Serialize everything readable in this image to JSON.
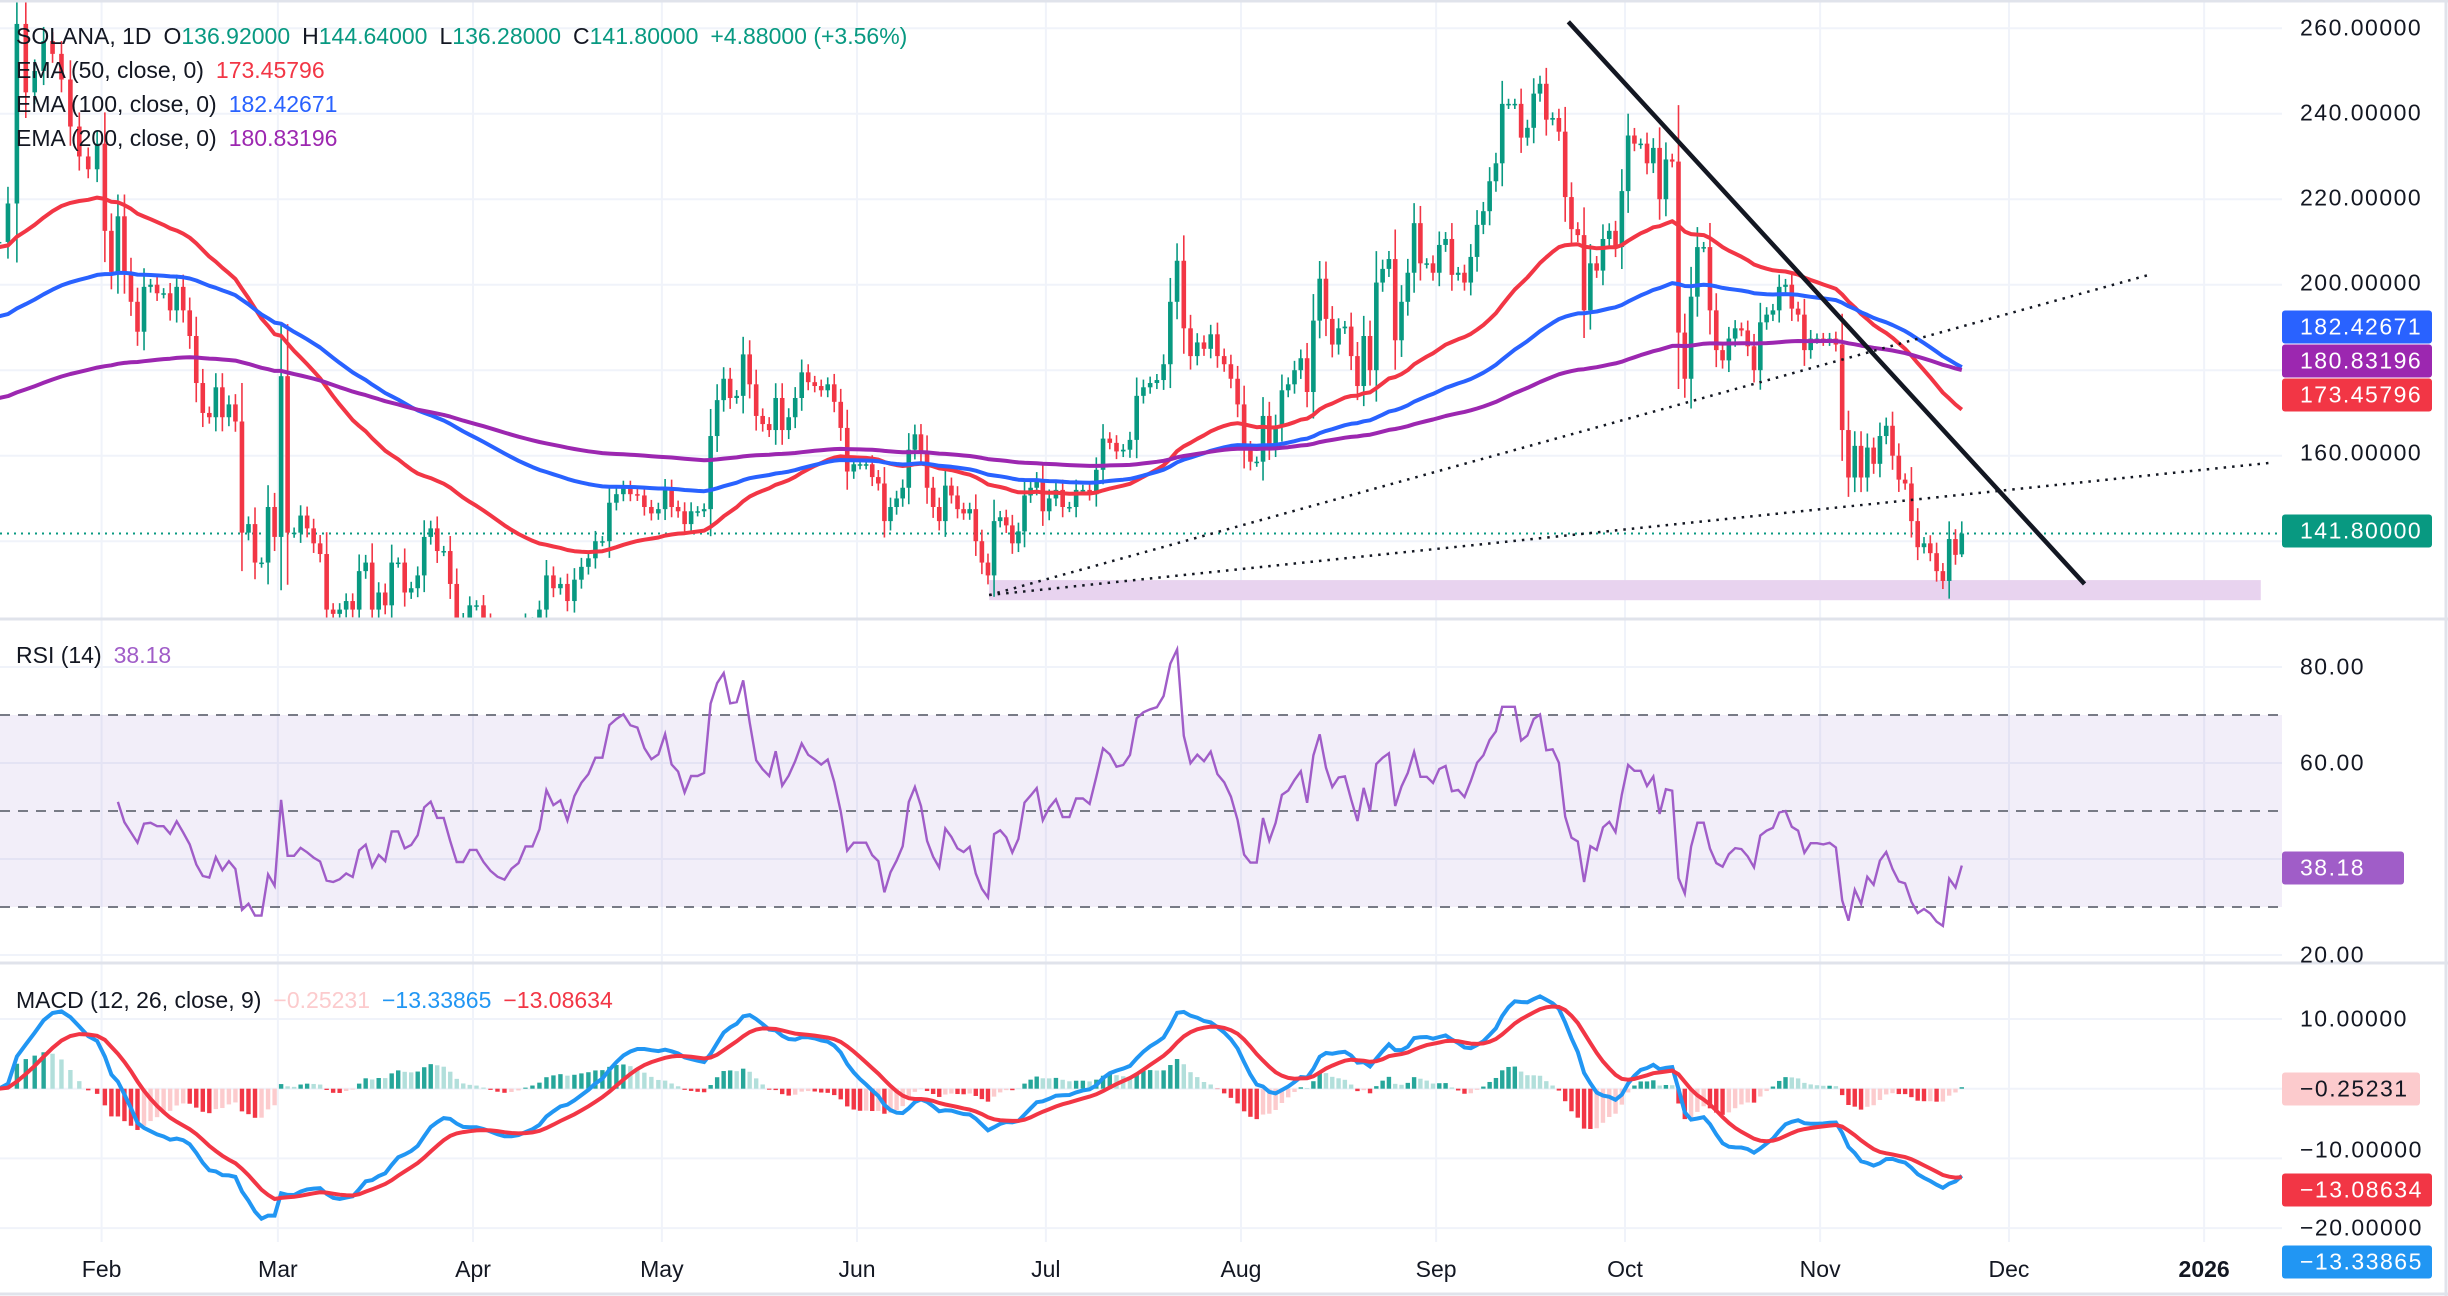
{
  "header": {
    "symbol": "SOLANA, 1D",
    "o_label": "O",
    "o": "136.92000",
    "h_label": "H",
    "h": "144.64000",
    "l_label": "L",
    "l": "136.28000",
    "c_label": "C",
    "c": "141.80000",
    "change": "+4.88000 (+3.56%)"
  },
  "indicators": [
    {
      "label": "EMA (50, close, 0)",
      "value": "173.45796",
      "color": "#f23645"
    },
    {
      "label": "EMA (100, close, 0)",
      "value": "182.42671",
      "color": "#2962ff"
    },
    {
      "label": "EMA (200, close, 0)",
      "value": "180.83196",
      "color": "#9c27b0"
    }
  ],
  "price_axis": {
    "ticks": [
      "260.00000",
      "240.00000",
      "220.00000",
      "200.00000",
      "160.00000"
    ],
    "last_price": "141.80000",
    "last_price_color": "#089981"
  },
  "rsi": {
    "label": "RSI (14)",
    "value": "38.18",
    "color": "#a05dc8",
    "ticks": [
      "80.00",
      "60.00",
      "20.00"
    ]
  },
  "macd": {
    "label": "MACD (12, 26, close, 9)",
    "histogram": "−0.25231",
    "macd": "−13.33865",
    "signal": "−13.08634",
    "macd_color": "#2196f3",
    "signal_color": "#f23645",
    "histogram_color": "#fccbcd",
    "ticks": [
      "10.00000",
      "−10.00000",
      "−20.00000"
    ]
  },
  "x_axis": {
    "labels": [
      {
        "text": "Feb",
        "date": "2025-02-01"
      },
      {
        "text": "Mar",
        "date": "2025-03-01"
      },
      {
        "text": "Apr",
        "date": "2025-04-01"
      },
      {
        "text": "May",
        "date": "2025-05-01"
      },
      {
        "text": "Jun",
        "date": "2025-06-01"
      },
      {
        "text": "Jul",
        "date": "2025-07-01"
      },
      {
        "text": "Aug",
        "date": "2025-08-01"
      },
      {
        "text": "Sep",
        "date": "2025-09-01"
      },
      {
        "text": "Oct",
        "date": "2025-10-01"
      },
      {
        "text": "Nov",
        "date": "2025-11-01"
      },
      {
        "text": "Dec",
        "date": "2025-12-01"
      },
      {
        "text": "2026",
        "date": "2026-01-01",
        "bold": true
      }
    ]
  },
  "chart_data": {
    "type": "candlestick",
    "symbol": "SOLANA",
    "interval": "1D",
    "up_color": "#089981",
    "down_color": "#f23645",
    "ylim": [
      121.8,
      266.6
    ],
    "rsi_ylim": [
      17,
      90
    ],
    "rsi_bands": [
      70,
      50,
      30
    ],
    "macd_ylim": [
      -24,
      14
    ],
    "grid": true,
    "closes_by_month": {
      "2025-01": [
        210,
        219,
        261,
        245,
        250,
        257,
        254,
        248,
        237,
        230,
        227,
        233
      ],
      "2025-02": [
        212.6,
        203,
        216,
        203,
        196,
        189,
        199.5,
        200,
        198,
        198,
        194,
        199.5,
        194,
        188,
        177,
        170,
        169,
        176,
        169,
        172,
        168,
        142,
        144,
        135,
        135,
        148,
        141
      ],
      "2025-03": [
        178.6,
        142,
        142,
        146,
        143,
        139.5,
        137,
        124,
        123,
        124,
        126,
        124,
        133,
        135,
        124,
        128,
        125,
        135,
        135,
        128,
        129,
        132,
        141,
        143,
        137.7,
        137.7,
        130,
        122,
        122,
        125
      ],
      "2025-04": [
        125,
        121,
        118,
        116,
        115,
        117,
        118,
        121,
        121,
        124,
        132,
        129,
        130,
        126,
        131,
        134,
        136,
        140,
        140,
        149,
        151,
        152.5,
        151,
        150.7,
        148,
        146.5,
        147.5
      ],
      "2025-05": [
        152,
        148,
        147,
        144,
        147,
        147,
        147.5,
        164.6,
        173,
        178,
        173.5,
        174,
        183.7,
        176.7,
        169.3,
        167.4,
        166,
        173.5,
        166,
        169,
        173.5,
        179.5,
        177.2,
        176.3,
        175.3,
        176.7,
        172.6,
        166.5,
        156.3,
        158
      ],
      "2025-06": [
        158,
        158,
        155,
        153.5,
        144.7,
        148,
        150,
        152.5,
        161.4,
        165,
        161,
        152.5,
        148,
        144.7,
        153,
        150.7,
        147.5,
        146.5,
        147.5,
        140,
        135,
        132,
        144.7,
        145.6,
        143.7,
        139.5,
        142.3,
        150.7,
        152.5,
        154.4,
        147
      ],
      "2025-07": [
        150,
        152,
        148,
        148,
        152,
        152,
        151,
        156.7,
        164,
        163,
        161,
        161.4,
        163.7,
        174,
        176,
        177,
        177.7,
        181.4,
        196,
        205.6,
        189.8,
        183.3,
        186.5,
        185,
        188.4,
        183.3,
        181.4,
        178,
        172
      ],
      "2025-08": [
        161.4,
        158.6,
        158.6,
        169.3,
        162.3,
        167,
        175.3,
        176.7,
        180,
        182.8,
        174.9,
        191.6,
        201.4,
        192,
        186,
        189.8,
        190.2,
        183.3,
        176.3,
        188,
        180,
        200.5,
        203.7,
        206,
        187,
        196,
        202.8,
        214.4,
        205,
        205,
        202.8
      ],
      "2025-09": [
        209.3,
        210.7,
        202.3,
        202.8,
        200.5,
        206.5,
        214,
        217.2,
        224.2,
        228.4,
        242.3,
        242.3,
        242.3,
        234.4,
        236.7,
        244.7,
        247,
        238.6,
        239,
        235.8,
        220.5,
        213,
        211.6,
        194,
        205,
        203.3,
        210.7,
        212.6,
        208.8,
        221.9
      ],
      "2025-10": [
        234.9,
        233,
        233,
        228.4,
        232,
        220,
        229.3,
        228.8,
        188.8,
        178,
        197.2,
        208.8,
        208.8,
        194,
        184.7,
        182.3,
        187.4,
        189.8,
        189.3,
        185.6,
        180,
        191.2,
        193,
        194,
        199.5,
        200,
        194.4,
        193,
        184.7,
        187.4,
        187.4
      ],
      "2025-11": [
        187,
        187.4,
        186,
        166,
        154.9,
        162.3,
        154.9,
        161.9,
        158.1,
        164.6,
        167,
        160,
        154.4,
        153.5,
        144.7,
        138.6,
        139.5,
        137.2,
        133,
        130.7,
        140.5,
        136.8,
        141.8
      ]
    },
    "last_candle": {
      "open": 136.92,
      "high": 144.64,
      "low": 136.28,
      "close": 141.8
    },
    "ema_start": {
      "ema50": 208.8,
      "ema100": 192.6,
      "ema200": 173.5
    },
    "drawings": {
      "downtrend_line": {
        "from": [
          "2025-09-22",
          261.5
        ],
        "to": [
          "2025-12-13",
          130.0
        ],
        "color": "#131722"
      },
      "dotted_line_upper": {
        "from": [
          "2025-06-22",
          127.4
        ],
        "to": [
          "2025-12-23",
          202.2
        ]
      },
      "dotted_line_lower": {
        "from": [
          "2025-06-22",
          127.4
        ],
        "to": [
          "2026-01-12",
          158.4
        ]
      },
      "support_zone": {
        "from": "2025-06-22",
        "to": "2026-01-10",
        "top": 130.9,
        "bottom": 126.2,
        "color": "#e8d3ef"
      },
      "last_price_line": 141.8
    }
  }
}
